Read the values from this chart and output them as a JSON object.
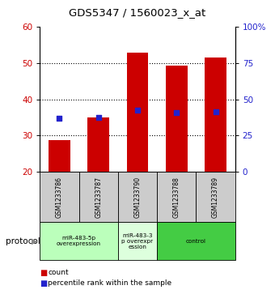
{
  "title": "GDS5347 / 1560023_x_at",
  "samples": [
    "GSM1233786",
    "GSM1233787",
    "GSM1233790",
    "GSM1233788",
    "GSM1233789"
  ],
  "count_values": [
    28.8,
    35.0,
    52.8,
    49.2,
    51.5
  ],
  "percentile_values": [
    37.0,
    37.5,
    42.5,
    41.0,
    41.5
  ],
  "ylim_left": [
    20,
    60
  ],
  "ylim_right": [
    0,
    100
  ],
  "yticks_left": [
    20,
    30,
    40,
    50,
    60
  ],
  "yticks_right": [
    0,
    25,
    50,
    75,
    100
  ],
  "ytick_labels_right": [
    "0",
    "25",
    "50",
    "75",
    "100%"
  ],
  "bar_color": "#cc0000",
  "dot_color": "#2222cc",
  "protocol_groups": [
    {
      "label": "miR-483-5p\noverexpression",
      "start": 0,
      "end": 1,
      "color": "#bbffbb"
    },
    {
      "label": "miR-483-3\np overexpr\nession",
      "start": 2,
      "end": 2,
      "color": "#ddffdd"
    },
    {
      "label": "control",
      "start": 3,
      "end": 4,
      "color": "#44cc44"
    }
  ],
  "protocol_label": "protocol",
  "legend_count_label": "count",
  "legend_percentile_label": "percentile rank within the sample",
  "bar_bottom": 20,
  "dot_size": 18,
  "bar_width": 0.55
}
